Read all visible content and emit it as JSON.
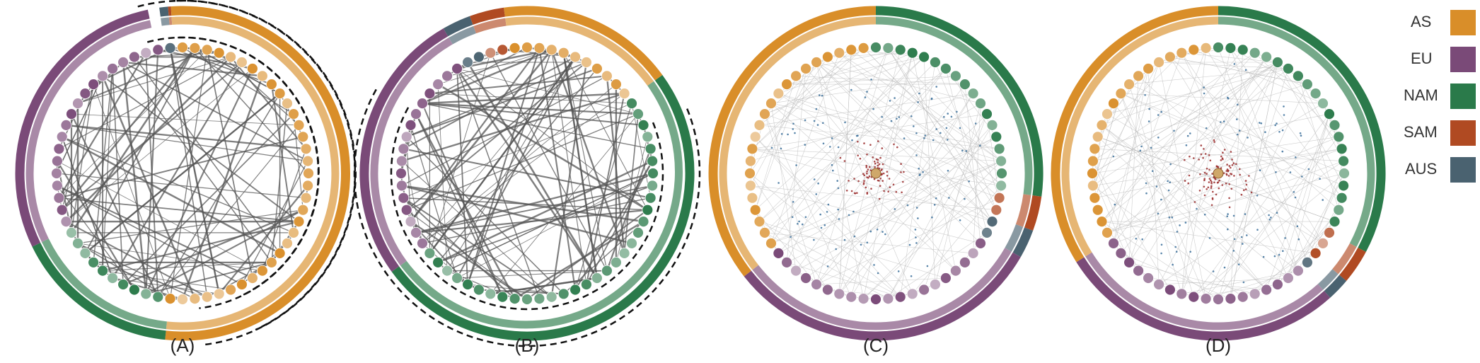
{
  "panels": [
    {
      "label": "(A)",
      "style": "dense",
      "dashed": [
        [
          358,
          175
        ],
        [
          -15,
          170
        ]
      ]
    },
    {
      "label": "(B)",
      "style": "dense",
      "dashed": [
        [
          68,
          232
        ]
      ]
    },
    {
      "label": "(C)",
      "style": "light",
      "dashed": []
    },
    {
      "label": "(D)",
      "style": "light",
      "dashed": []
    }
  ],
  "legend": [
    {
      "name": "AS",
      "color": "#d98e29"
    },
    {
      "name": "EU",
      "color": "#7a4a78"
    },
    {
      "name": "NAM",
      "color": "#2a7a4a"
    },
    {
      "name": "SAM",
      "color": "#b04a22"
    },
    {
      "name": "AUS",
      "color": "#4a6270"
    }
  ],
  "colors": {
    "edge_dense": "#555555",
    "edge_light": "#bbbbbb",
    "flow_red": "#9a2a2a",
    "flow_blue": "#3a6f9a",
    "dash": "#111111"
  }
}
